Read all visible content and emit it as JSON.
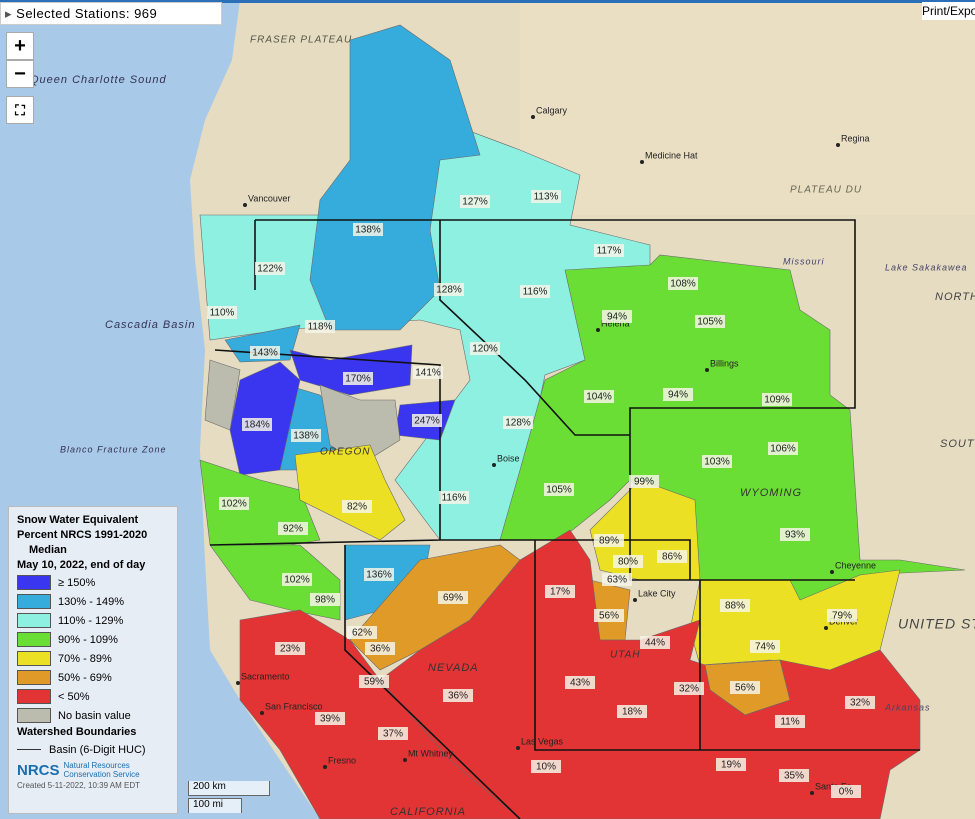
{
  "header": {
    "label": "Selected Stations:",
    "count": 969
  },
  "print_button": "Print/Expo",
  "zoom": {
    "in": "+",
    "out": "−"
  },
  "basins": [
    "138%",
    "127%",
    "113%",
    "117%",
    "122%",
    "110%",
    "118%",
    "128%",
    "116%",
    "108%",
    "94%",
    "105%",
    "143%",
    "170%",
    "141%",
    "120%",
    "104%",
    "94%",
    "109%",
    "184%",
    "138%",
    "247%",
    "128%",
    "106%",
    "103%",
    "99%",
    "102%",
    "92%",
    "82%",
    "116%",
    "105%",
    "89%",
    "80%",
    "86%",
    "93%",
    "63%",
    "102%",
    "136%",
    "69%",
    "98%",
    "17%",
    "56%",
    "88%",
    "79%",
    "62%",
    "23%",
    "36%",
    "44%",
    "74%",
    "59%",
    "36%",
    "43%",
    "32%",
    "56%",
    "32%",
    "39%",
    "18%",
    "11%",
    "37%",
    "10%",
    "19%",
    "35%",
    "0%"
  ],
  "places": [
    "Vancouver",
    "Calgary",
    "Medicine Hat",
    "Regina",
    "Helena",
    "Billings",
    "Boise",
    "Cheyenne",
    "Denver",
    "Lake City",
    "Sacramento",
    "San Francisco",
    "Fresno",
    "Las Vegas",
    "Santa Fe",
    "Mt Whitney"
  ],
  "regions": [
    "Queen Charlotte Sound",
    "FRASER PLATEAU",
    "PLATEAU DU",
    "Cascadia Basin",
    "Blanco Fracture Zone",
    "OREGON",
    "NEVADA",
    "UTAH",
    "WYOMING",
    "CALIFORNIA",
    "NORTH",
    "SOUTH",
    "UNITED STATES",
    "Missouri",
    "Lake Sakakawea",
    "Arkansas"
  ],
  "legend": {
    "title": "Snow Water Equivalent",
    "subtitle": "Percent NRCS 1991-2020",
    "median": "Median",
    "date": "May 10, 2022, end of day",
    "items": [
      "≥ 150%",
      "130% - 149%",
      "110% - 129%",
      "90% - 109%",
      "70% - 89%",
      "50% - 69%",
      "< 50%",
      "No basin value"
    ],
    "boundaries_title": "Watershed Boundaries",
    "boundary_item": "Basin (6-Digit HUC)"
  },
  "scale": {
    "km": "200 km",
    "mi": "100 mi"
  },
  "credits": {
    "logo": "NRCS",
    "agency": "Natural Resources Conservation Service",
    "created": "Created 5-11-2022, 10:39 AM EDT"
  }
}
